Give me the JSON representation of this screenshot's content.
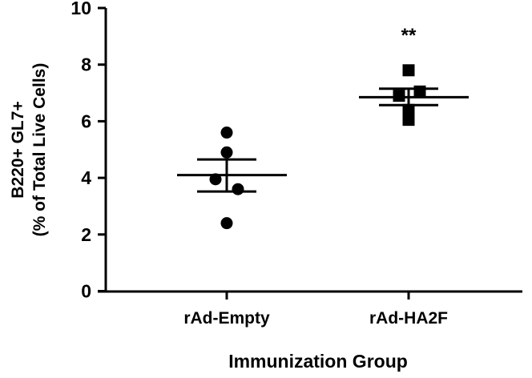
{
  "chart_data": {
    "type": "scatter",
    "title": "",
    "xlabel": "Immunization Group",
    "ylabel_line1": "B220+ GL7+",
    "ylabel_line2": "(% of Total Live Cells)",
    "ylim": [
      0,
      10
    ],
    "yticks": [
      "0",
      "2",
      "4",
      "6",
      "8",
      "10"
    ],
    "grid": false,
    "categories": [
      "rAd-Empty",
      "rAd-HA2F"
    ],
    "series": [
      {
        "name": "rAd-Empty",
        "marker": "circle",
        "values": [
          5.6,
          4.9,
          3.95,
          3.6,
          2.4
        ],
        "mean": 4.1,
        "sem_upper": 4.65,
        "sem_lower": 3.52
      },
      {
        "name": "rAd-HA2F",
        "marker": "square",
        "values": [
          7.8,
          7.05,
          6.9,
          6.4,
          6.05
        ],
        "mean": 6.85,
        "sem_upper": 7.15,
        "sem_lower": 6.57
      }
    ],
    "annotations": [
      {
        "group": "rAd-HA2F",
        "text": "**"
      }
    ]
  }
}
